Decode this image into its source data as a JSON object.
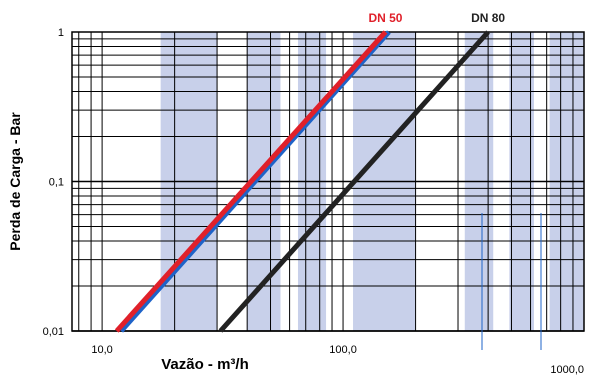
{
  "chart_data": {
    "type": "line",
    "title": "",
    "xlabel": "Vazão - m³/h",
    "ylabel": "Perda de Carga - Bar",
    "x_scale": "log",
    "y_scale": "log",
    "xlim": [
      7.5,
      1000
    ],
    "ylim": [
      0.01,
      1
    ],
    "grid": true,
    "x_ticks": [
      {
        "value": 10,
        "label": "10,0"
      },
      {
        "value": 100,
        "label": "100,0"
      },
      {
        "value": 1000,
        "label": "1000,0"
      }
    ],
    "y_ticks": [
      {
        "value": 1,
        "label": "1"
      },
      {
        "value": 0.1,
        "label": "0,1"
      },
      {
        "value": 0.01,
        "label": "0,01"
      }
    ],
    "shaded_bands": [
      [
        17.5,
        30
      ],
      [
        40,
        55
      ],
      [
        65,
        85
      ],
      [
        110,
        200
      ],
      [
        320,
        420
      ],
      [
        490,
        620
      ],
      [
        720,
        1000
      ]
    ],
    "series": [
      {
        "name": "DN 50",
        "color": "#e0202a",
        "x": [
          11.5,
          150
        ],
        "y": [
          0.01,
          1
        ]
      },
      {
        "name": "",
        "color": "#1e63c8",
        "x": [
          12,
          155
        ],
        "y": [
          0.01,
          1
        ]
      },
      {
        "name": "DN 80",
        "color": "#222222",
        "x": [
          31,
          400
        ],
        "y": [
          0.01,
          1
        ]
      }
    ]
  }
}
